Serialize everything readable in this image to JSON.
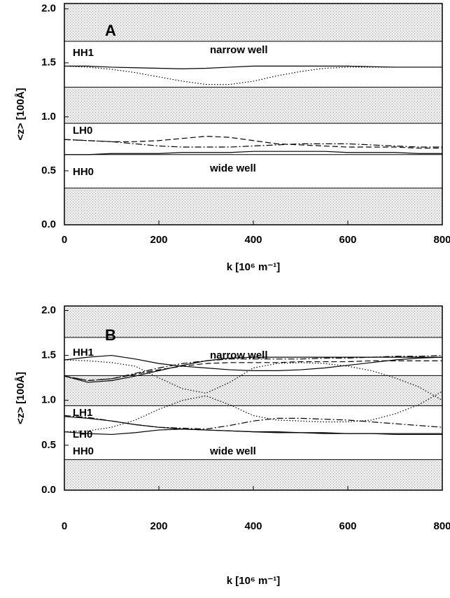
{
  "chart_data": [
    {
      "type": "line",
      "x_label": "k [10⁶ m⁻¹]",
      "y_label": "<z> [100Å]",
      "xlim": [
        0,
        800
      ],
      "ylim": [
        0,
        2.05
      ],
      "xticks": [
        0,
        200,
        400,
        600,
        800
      ],
      "yticks": [
        {
          "value": 0,
          "label": "0.0"
        },
        {
          "value": 0.5,
          "label": "0.5"
        },
        {
          "value": 1,
          "label": "1.0"
        },
        {
          "value": 1.5,
          "label": "1.5"
        },
        {
          "value": 2,
          "label": "2.0"
        }
      ],
      "shaded_bands": [
        [
          0,
          0.34
        ],
        [
          0.94,
          1.275
        ],
        [
          1.7,
          2.05
        ]
      ],
      "boundaries": [
        0.34,
        0.65,
        0.94,
        1.275,
        1.7
      ],
      "annotations": [
        "A",
        "HH1",
        "narrow well",
        "LH0",
        "HH0",
        "wide well"
      ],
      "x": [
        0,
        50,
        100,
        150,
        200,
        250,
        300,
        350,
        400,
        450,
        500,
        550,
        600,
        650,
        700,
        750,
        800
      ],
      "series": [
        {
          "color": "#000",
          "dash": "solid",
          "values": [
            1.47,
            1.47,
            1.46,
            1.455,
            1.45,
            1.445,
            1.45,
            1.46,
            1.47,
            1.47,
            1.47,
            1.47,
            1.47,
            1.465,
            1.46,
            1.46,
            1.46
          ]
        },
        {
          "color": "#000",
          "dash": "dotted",
          "values": [
            1.47,
            1.46,
            1.44,
            1.41,
            1.37,
            1.33,
            1.3,
            1.3,
            1.33,
            1.38,
            1.42,
            1.45,
            1.46,
            1.46,
            1.46,
            1.46,
            1.46
          ]
        },
        {
          "color": "#000",
          "dash": "dashed",
          "values": [
            0.79,
            0.78,
            0.77,
            0.77,
            0.78,
            0.8,
            0.82,
            0.81,
            0.78,
            0.75,
            0.74,
            0.73,
            0.72,
            0.72,
            0.72,
            0.71,
            0.71
          ]
        },
        {
          "color": "#000",
          "dash": "dashdot",
          "values": [
            0.79,
            0.78,
            0.77,
            0.75,
            0.73,
            0.72,
            0.72,
            0.72,
            0.73,
            0.74,
            0.75,
            0.75,
            0.75,
            0.74,
            0.73,
            0.72,
            0.72
          ]
        },
        {
          "color": "#000",
          "dash": "solid",
          "values": [
            0.65,
            0.65,
            0.66,
            0.66,
            0.66,
            0.67,
            0.67,
            0.67,
            0.68,
            0.68,
            0.68,
            0.68,
            0.67,
            0.67,
            0.67,
            0.66,
            0.66
          ]
        }
      ]
    },
    {
      "type": "line",
      "x_label": "k [10⁶ m⁻¹]",
      "y_label": "<z> [100Å]",
      "xlim": [
        0,
        800
      ],
      "ylim": [
        0,
        2.05
      ],
      "xticks": [
        0,
        200,
        400,
        600,
        800
      ],
      "yticks": [
        {
          "value": 0,
          "label": "0.0"
        },
        {
          "value": 0.5,
          "label": "0.5"
        },
        {
          "value": 1,
          "label": "1.0"
        },
        {
          "value": 1.5,
          "label": "1.5"
        },
        {
          "value": 2,
          "label": "2.0"
        }
      ],
      "shaded_bands": [
        [
          0,
          0.34
        ],
        [
          0.94,
          1.275
        ],
        [
          1.7,
          2.05
        ]
      ],
      "boundaries": [
        0.34,
        0.94,
        1.275,
        1.7
      ],
      "annotations": [
        "B",
        "HH1",
        "narrow well",
        "LH1",
        "LH0",
        "HH0",
        "wide well"
      ],
      "x": [
        0,
        50,
        100,
        150,
        200,
        250,
        300,
        350,
        400,
        450,
        500,
        550,
        600,
        650,
        700,
        750,
        800
      ],
      "series": [
        {
          "color": "#000",
          "dash": "solid",
          "values": [
            1.45,
            1.48,
            1.5,
            1.46,
            1.41,
            1.38,
            1.36,
            1.34,
            1.33,
            1.33,
            1.34,
            1.36,
            1.39,
            1.42,
            1.45,
            1.47,
            1.48
          ]
        },
        {
          "color": "#000",
          "dash": "solid",
          "values": [
            1.27,
            1.2,
            1.22,
            1.27,
            1.33,
            1.39,
            1.44,
            1.47,
            1.48,
            1.48,
            1.48,
            1.48,
            1.48,
            1.48,
            1.48,
            1.48,
            1.48
          ]
        },
        {
          "color": "#000",
          "dash": "dashed",
          "values": [
            1.27,
            1.22,
            1.24,
            1.29,
            1.34,
            1.38,
            1.41,
            1.42,
            1.42,
            1.42,
            1.43,
            1.43,
            1.43,
            1.44,
            1.44,
            1.44,
            1.44
          ]
        },
        {
          "color": "#000",
          "dash": "dashdot",
          "values": [
            1.27,
            1.22,
            1.24,
            1.3,
            1.36,
            1.41,
            1.44,
            1.46,
            1.46,
            1.46,
            1.46,
            1.47,
            1.47,
            1.48,
            1.49,
            1.49,
            1.5
          ]
        },
        {
          "color": "#000",
          "dash": "dotted",
          "values": [
            1.45,
            1.44,
            1.42,
            1.38,
            1.25,
            1.13,
            1.08,
            1.2,
            1.36,
            1.41,
            1.42,
            1.41,
            1.38,
            1.33,
            1.25,
            1.15,
            1.0
          ]
        },
        {
          "color": "#000",
          "dash": "dotted",
          "values": [
            0.65,
            0.66,
            0.7,
            0.78,
            0.9,
            1.0,
            1.05,
            0.95,
            0.83,
            0.78,
            0.77,
            0.76,
            0.76,
            0.78,
            0.85,
            0.95,
            1.1
          ]
        },
        {
          "color": "#000",
          "dash": "dashdot",
          "values": [
            0.83,
            0.81,
            0.77,
            0.73,
            0.7,
            0.69,
            0.68,
            0.72,
            0.77,
            0.8,
            0.8,
            0.79,
            0.78,
            0.76,
            0.74,
            0.72,
            0.7
          ]
        },
        {
          "color": "#000",
          "dash": "solid",
          "values": [
            0.82,
            0.8,
            0.77,
            0.73,
            0.7,
            0.68,
            0.67,
            0.66,
            0.65,
            0.65,
            0.64,
            0.64,
            0.63,
            0.63,
            0.63,
            0.63,
            0.63
          ]
        },
        {
          "color": "#000",
          "dash": "solid",
          "values": [
            0.65,
            0.63,
            0.62,
            0.64,
            0.67,
            0.68,
            0.67,
            0.66,
            0.65,
            0.64,
            0.64,
            0.63,
            0.63,
            0.63,
            0.62,
            0.62,
            0.62
          ]
        }
      ]
    }
  ]
}
